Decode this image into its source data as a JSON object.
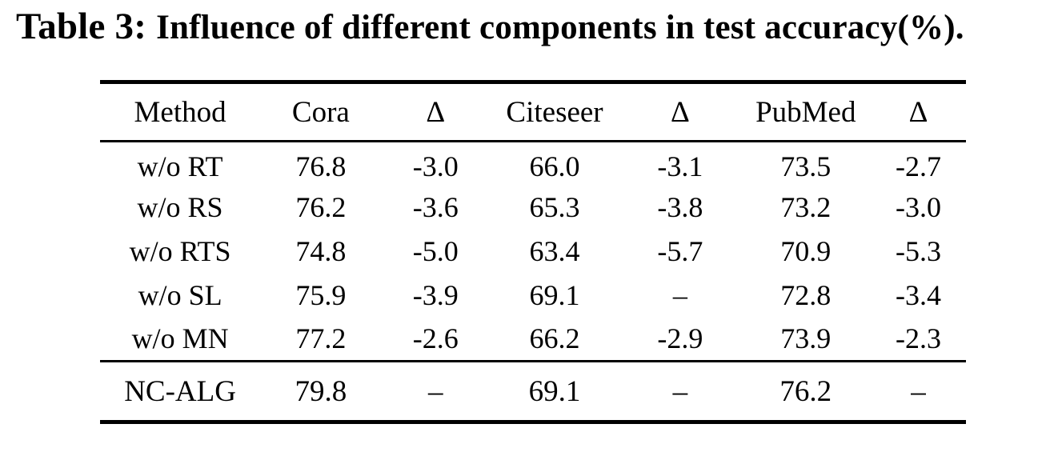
{
  "caption": {
    "prefix": "Table 3:",
    "text": "Influence of different components in test accuracy(%)."
  },
  "table": {
    "columns": [
      "Method",
      "Cora",
      "Δ",
      "Citeseer",
      "Δ",
      "PubMed",
      "Δ"
    ],
    "rows": [
      [
        "w/o RT",
        "76.8",
        "-3.0",
        "66.0",
        "-3.1",
        "73.5",
        "-2.7"
      ],
      [
        "w/o RS",
        "76.2",
        "-3.6",
        "65.3",
        "-3.8",
        "73.2",
        "-3.0"
      ],
      [
        "w/o RTS",
        "74.8",
        "-5.0",
        "63.4",
        "-5.7",
        "70.9",
        "-5.3"
      ],
      [
        "w/o SL",
        "75.9",
        "-3.9",
        "69.1",
        "–",
        "72.8",
        "-3.4"
      ],
      [
        "w/o MN",
        "77.2",
        "-2.6",
        "66.2",
        "-2.9",
        "73.9",
        "-2.3"
      ]
    ],
    "footer": [
      "NC-ALG",
      "79.8",
      "–",
      "69.1",
      "–",
      "76.2",
      "–"
    ]
  },
  "colors": {
    "text": "#000000",
    "background": "#ffffff",
    "rule": "#000000"
  }
}
